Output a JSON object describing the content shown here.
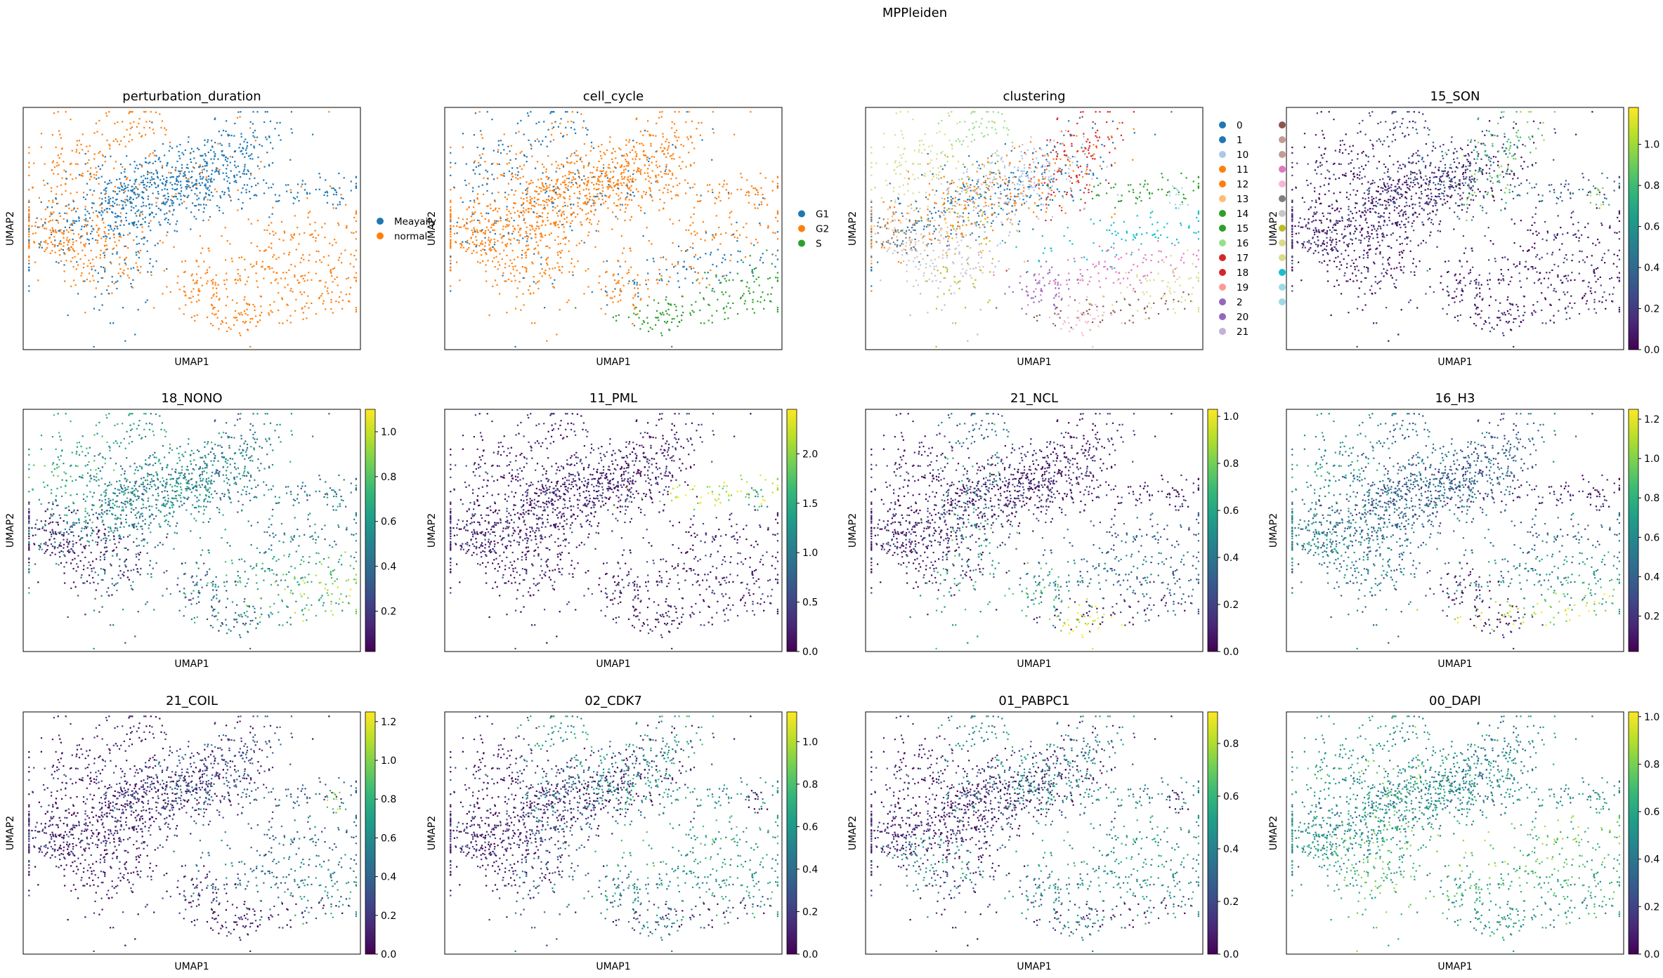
{
  "figure": {
    "suptitle": "MPPleiden"
  },
  "colors": {
    "tab20": [
      "#1f77b4",
      "#aec7e8",
      "#ff7f0e",
      "#ffbb78",
      "#2ca02c",
      "#98df8a",
      "#d62728",
      "#ff9896",
      "#9467bd",
      "#c5b0d5",
      "#8c564b",
      "#c49c94",
      "#e377c2",
      "#f7b6d2",
      "#7f7f7f",
      "#c7c7c7",
      "#bcbd22",
      "#dbdb8d",
      "#17becf",
      "#9edae5"
    ],
    "viridis": [
      "#440154",
      "#482878",
      "#3e4a89",
      "#31688e",
      "#26828e",
      "#1f9e89",
      "#35b779",
      "#6ece58",
      "#b5de2b",
      "#fde725"
    ]
  },
  "chart_data": [
    {
      "type": "scatter",
      "title": "perturbation_duration",
      "xlabel": "UMAP1",
      "ylabel": "UMAP2",
      "color_mode": "categorical",
      "legend": [
        {
          "label": "Meayaily",
          "color": "#1f77b4"
        },
        {
          "label": "normal",
          "color": "#ff7f0e"
        }
      ]
    },
    {
      "type": "scatter",
      "title": "cell_cycle",
      "xlabel": "UMAP1",
      "ylabel": "UMAP2",
      "color_mode": "categorical",
      "legend": [
        {
          "label": "G1",
          "color": "#1f77b4"
        },
        {
          "label": "G2",
          "color": "#ff7f0e"
        },
        {
          "label": "S",
          "color": "#2ca02c"
        }
      ]
    },
    {
      "type": "scatter",
      "title": "clustering",
      "xlabel": "UMAP1",
      "ylabel": "UMAP2",
      "color_mode": "categorical",
      "legend": [
        {
          "label": "0",
          "color": "#1f77b4"
        },
        {
          "label": "1",
          "color": "#1f77b4"
        },
        {
          "label": "10",
          "color": "#aec7e8"
        },
        {
          "label": "11",
          "color": "#ff7f0e"
        },
        {
          "label": "12",
          "color": "#ff7f0e"
        },
        {
          "label": "13",
          "color": "#ffbb78"
        },
        {
          "label": "14",
          "color": "#2ca02c"
        },
        {
          "label": "15",
          "color": "#2ca02c"
        },
        {
          "label": "16",
          "color": "#98df8a"
        },
        {
          "label": "17",
          "color": "#d62728"
        },
        {
          "label": "18",
          "color": "#d62728"
        },
        {
          "label": "19",
          "color": "#ff9896"
        },
        {
          "label": "2",
          "color": "#9467bd"
        },
        {
          "label": "20",
          "color": "#9467bd"
        },
        {
          "label": "21",
          "color": "#c5b0d5"
        }
      ],
      "legend_col2_colors": [
        "#8c564b",
        "#c49c94",
        "#c49c94",
        "#e377c2",
        "#f7b6d2",
        "#7f7f7f",
        "#c7c7c7",
        "#bcbd22",
        "#dbdb8d",
        "#dbdb8d",
        "#17becf",
        "#9edae5",
        "#9edae5"
      ]
    },
    {
      "type": "scatter",
      "title": "15_SON",
      "xlabel": "UMAP1",
      "ylabel": "UMAP2",
      "color_mode": "continuous",
      "vmin": 0,
      "vmax": 1.18,
      "cbar_ticks": [
        "0.0",
        "0.2",
        "0.4",
        "0.6",
        "0.8",
        "1.0"
      ],
      "cbar_values": [
        0,
        0.2,
        0.4,
        0.6,
        0.8,
        1.0
      ]
    },
    {
      "type": "scatter",
      "title": "18_NONO",
      "xlabel": "UMAP1",
      "ylabel": "UMAP2",
      "color_mode": "continuous",
      "vmin": 0.02,
      "vmax": 1.1,
      "cbar_ticks": [
        "0.2",
        "0.4",
        "0.6",
        "0.8",
        "1.0"
      ],
      "cbar_values": [
        0.2,
        0.4,
        0.6,
        0.8,
        1.0
      ]
    },
    {
      "type": "scatter",
      "title": "11_PML",
      "xlabel": "UMAP1",
      "ylabel": "UMAP2",
      "color_mode": "continuous",
      "vmin": 0,
      "vmax": 2.45,
      "cbar_ticks": [
        "0.0",
        "0.5",
        "1.0",
        "1.5",
        "2.0"
      ],
      "cbar_values": [
        0,
        0.5,
        1.0,
        1.5,
        2.0
      ]
    },
    {
      "type": "scatter",
      "title": "21_NCL",
      "xlabel": "UMAP1",
      "ylabel": "UMAP2",
      "color_mode": "continuous",
      "vmin": 0,
      "vmax": 1.03,
      "cbar_ticks": [
        "0.0",
        "0.2",
        "0.4",
        "0.6",
        "0.8",
        "1.0"
      ],
      "cbar_values": [
        0,
        0.2,
        0.4,
        0.6,
        0.8,
        1.0
      ]
    },
    {
      "type": "scatter",
      "title": "16_H3",
      "xlabel": "UMAP1",
      "ylabel": "UMAP2",
      "color_mode": "continuous",
      "vmin": 0.02,
      "vmax": 1.25,
      "cbar_ticks": [
        "0.2",
        "0.4",
        "0.6",
        "0.8",
        "1.0",
        "1.2"
      ],
      "cbar_values": [
        0.2,
        0.4,
        0.6,
        0.8,
        1.0,
        1.2
      ]
    },
    {
      "type": "scatter",
      "title": "21_COIL",
      "xlabel": "UMAP1",
      "ylabel": "UMAP2",
      "color_mode": "continuous",
      "vmin": 0,
      "vmax": 1.25,
      "cbar_ticks": [
        "0.0",
        "0.2",
        "0.4",
        "0.6",
        "0.8",
        "1.0",
        "1.2"
      ],
      "cbar_values": [
        0,
        0.2,
        0.4,
        0.6,
        0.8,
        1.0,
        1.2
      ]
    },
    {
      "type": "scatter",
      "title": "02_CDK7",
      "xlabel": "UMAP1",
      "ylabel": "UMAP2",
      "color_mode": "continuous",
      "vmin": 0,
      "vmax": 1.14,
      "cbar_ticks": [
        "0.0",
        "0.2",
        "0.4",
        "0.6",
        "0.8",
        "1.0"
      ],
      "cbar_values": [
        0,
        0.2,
        0.4,
        0.6,
        0.8,
        1.0
      ]
    },
    {
      "type": "scatter",
      "title": "01_PABPC1",
      "xlabel": "UMAP1",
      "ylabel": "UMAP2",
      "color_mode": "continuous",
      "vmin": 0,
      "vmax": 0.92,
      "cbar_ticks": [
        "0.0",
        "0.2",
        "0.4",
        "0.6",
        "0.8"
      ],
      "cbar_values": [
        0,
        0.2,
        0.4,
        0.6,
        0.8
      ]
    },
    {
      "type": "scatter",
      "title": "00_DAPI",
      "xlabel": "UMAP1",
      "ylabel": "UMAP2",
      "color_mode": "continuous",
      "vmin": 0,
      "vmax": 1.02,
      "cbar_ticks": [
        "0.0",
        "0.2",
        "0.4",
        "0.6",
        "0.8",
        "1.0"
      ],
      "cbar_values": [
        0,
        0.2,
        0.4,
        0.6,
        0.8,
        1.0
      ]
    }
  ]
}
